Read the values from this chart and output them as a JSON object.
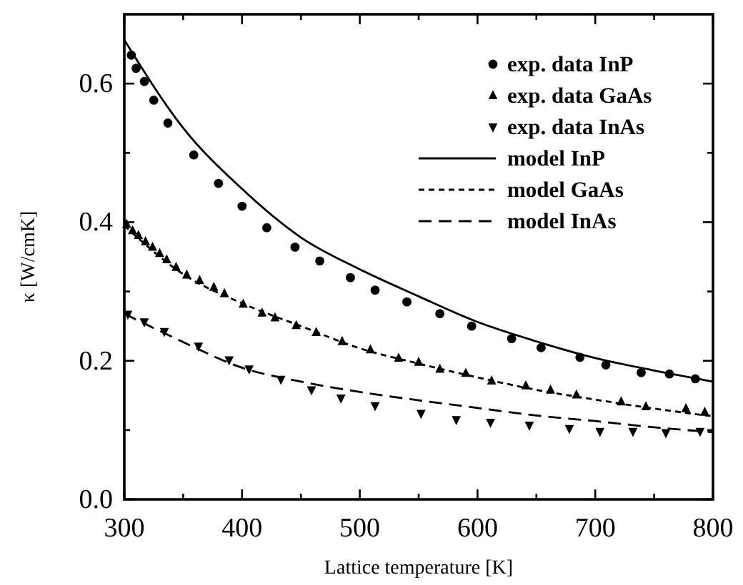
{
  "chart_data": {
    "type": "scatter",
    "xlabel": "Lattice temperature [K]",
    "ylabel": "κ [W/cmK]",
    "xlim": [
      300,
      800
    ],
    "ylim": [
      0,
      0.7
    ],
    "xticks": [
      300,
      {
        "value": 350,
        "label": null
      },
      400,
      {
        "value": 450,
        "label": null
      },
      500,
      {
        "value": 550,
        "label": null
      },
      600,
      {
        "value": 650,
        "label": null
      },
      700,
      {
        "value": 750,
        "label": null
      },
      800
    ],
    "yticks": [
      {
        "value": 0,
        "label": "0.0"
      },
      {
        "value": 0.1,
        "label": null
      },
      {
        "value": 0.2,
        "label": "0.2"
      },
      {
        "value": 0.3,
        "label": null
      },
      {
        "value": 0.4,
        "label": "0.4"
      },
      {
        "value": 0.5,
        "label": null
      },
      {
        "value": 0.6,
        "label": "0.6"
      }
    ],
    "grid": false,
    "legend": "top right",
    "series": [
      {
        "name": "exp. data InP",
        "marker": "circle",
        "color": "#000000",
        "x": [
          306,
          310,
          317,
          325,
          337,
          359,
          380,
          400,
          421,
          445,
          466,
          492,
          513,
          540,
          568,
          595,
          629,
          654,
          687,
          709,
          739,
          763,
          785
        ],
        "values": [
          0.641,
          0.622,
          0.603,
          0.576,
          0.543,
          0.497,
          0.456,
          0.423,
          0.392,
          0.364,
          0.344,
          0.32,
          0.302,
          0.285,
          0.268,
          0.25,
          0.232,
          0.219,
          0.205,
          0.194,
          0.183,
          0.181,
          0.174
        ]
      },
      {
        "name": "exp. data GaAs",
        "marker": "triangle",
        "color": "#000000",
        "x": [
          302,
          307,
          312,
          318,
          324,
          330,
          336,
          344,
          353,
          364,
          376,
          385,
          401,
          417,
          428,
          446,
          463,
          485,
          509,
          533,
          550,
          568,
          590,
          612,
          641,
          662,
          684,
          722,
          743,
          777,
          793
        ],
        "values": [
          0.397,
          0.388,
          0.381,
          0.372,
          0.364,
          0.355,
          0.346,
          0.335,
          0.324,
          0.316,
          0.306,
          0.297,
          0.282,
          0.269,
          0.262,
          0.251,
          0.241,
          0.228,
          0.216,
          0.204,
          0.198,
          0.188,
          0.182,
          0.171,
          0.164,
          0.158,
          0.151,
          0.141,
          0.134,
          0.131,
          0.126
        ]
      },
      {
        "name": "exp. data InAs",
        "marker": "triangle-down",
        "color": "#000000",
        "x": [
          303,
          317,
          334,
          363,
          389,
          406,
          433,
          459,
          484,
          513,
          552,
          582,
          611,
          644,
          678,
          704,
          732,
          760,
          789
        ],
        "values": [
          0.267,
          0.256,
          0.242,
          0.221,
          0.201,
          0.188,
          0.173,
          0.158,
          0.146,
          0.135,
          0.124,
          0.115,
          0.111,
          0.107,
          0.102,
          0.098,
          0.098,
          0.096,
          0.098
        ]
      },
      {
        "name": "model InP",
        "type": "line",
        "line_style": "solid",
        "color": "#000000",
        "x": [
          300,
          350,
          400,
          450,
          500,
          550,
          600,
          650,
          700,
          750,
          800
        ],
        "values": [
          0.663,
          0.536,
          0.448,
          0.378,
          0.332,
          0.293,
          0.256,
          0.228,
          0.204,
          0.186,
          0.17
        ]
      },
      {
        "name": "model GaAs",
        "type": "line",
        "line_style": "dotted",
        "color": "#000000",
        "x": [
          300,
          350,
          400,
          450,
          500,
          550,
          600,
          650,
          700,
          750,
          800
        ],
        "values": [
          0.395,
          0.325,
          0.283,
          0.25,
          0.218,
          0.196,
          0.176,
          0.158,
          0.144,
          0.131,
          0.12
        ]
      },
      {
        "name": "model InAs",
        "type": "line",
        "line_style": "dashed",
        "color": "#000000",
        "x": [
          300,
          350,
          400,
          450,
          500,
          550,
          600,
          650,
          700,
          750,
          800
        ],
        "values": [
          0.268,
          0.227,
          0.19,
          0.17,
          0.155,
          0.143,
          0.132,
          0.121,
          0.113,
          0.104,
          0.097
        ]
      }
    ]
  }
}
